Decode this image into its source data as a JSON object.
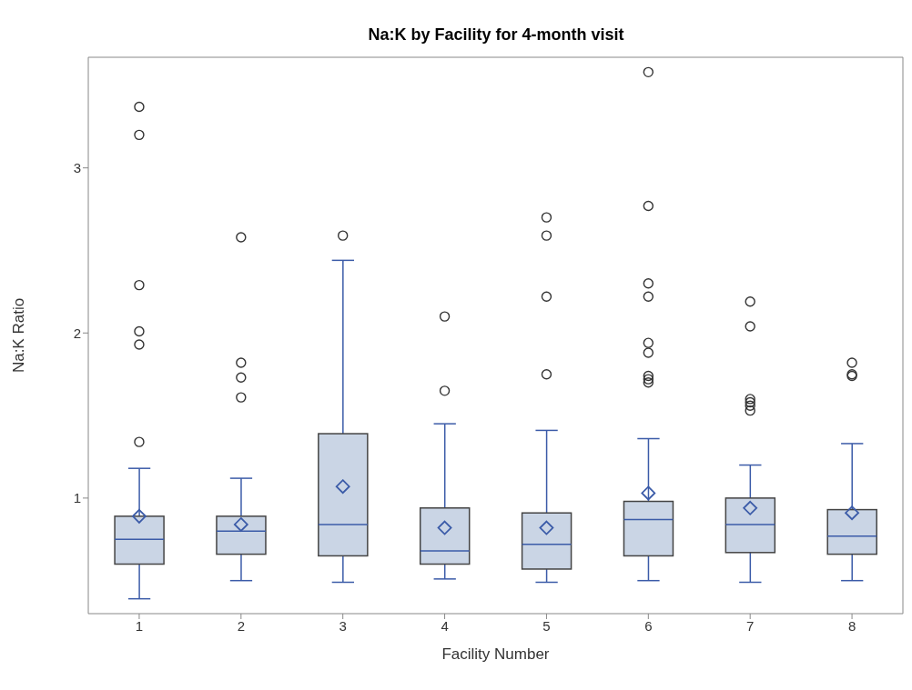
{
  "chart_data": {
    "type": "box",
    "title": "Na:K by Facility for 4-month visit",
    "xlabel": "Facility Number",
    "ylabel": "Na:K Ratio",
    "categories": [
      "1",
      "2",
      "3",
      "4",
      "5",
      "6",
      "7",
      "8"
    ],
    "color": "#cad5e5",
    "ylim": [
      0.3,
      3.67
    ],
    "yticks": [
      1,
      2,
      3
    ],
    "boxes": [
      {
        "low": 0.39,
        "q1": 0.6,
        "median": 0.75,
        "q3": 0.89,
        "high": 1.18,
        "mean": 0.89,
        "outliers": [
          1.34,
          1.93,
          2.01,
          2.29,
          3.2,
          3.37
        ]
      },
      {
        "low": 0.5,
        "q1": 0.66,
        "median": 0.8,
        "q3": 0.89,
        "high": 1.12,
        "mean": 0.84,
        "outliers": [
          1.61,
          1.73,
          1.82,
          2.58
        ]
      },
      {
        "low": 0.49,
        "q1": 0.65,
        "median": 0.84,
        "q3": 1.39,
        "high": 2.44,
        "mean": 1.07,
        "outliers": [
          2.59
        ]
      },
      {
        "low": 0.51,
        "q1": 0.6,
        "median": 0.68,
        "q3": 0.94,
        "high": 1.45,
        "mean": 0.82,
        "outliers": [
          1.65,
          2.1
        ]
      },
      {
        "low": 0.49,
        "q1": 0.57,
        "median": 0.72,
        "q3": 0.91,
        "high": 1.41,
        "mean": 0.82,
        "outliers": [
          1.75,
          2.22,
          2.59,
          2.7
        ]
      },
      {
        "low": 0.5,
        "q1": 0.65,
        "median": 0.87,
        "q3": 0.98,
        "high": 1.36,
        "mean": 1.03,
        "outliers": [
          1.7,
          1.72,
          1.74,
          1.88,
          1.94,
          2.22,
          2.3,
          2.77,
          3.58
        ]
      },
      {
        "low": 0.49,
        "q1": 0.67,
        "median": 0.84,
        "q3": 1.0,
        "high": 1.2,
        "mean": 0.94,
        "outliers": [
          1.53,
          1.56,
          1.58,
          1.6,
          2.04,
          2.19
        ]
      },
      {
        "low": 0.5,
        "q1": 0.66,
        "median": 0.77,
        "q3": 0.93,
        "high": 1.33,
        "mean": 0.91,
        "outliers": [
          1.74,
          1.75,
          1.82
        ]
      }
    ]
  }
}
